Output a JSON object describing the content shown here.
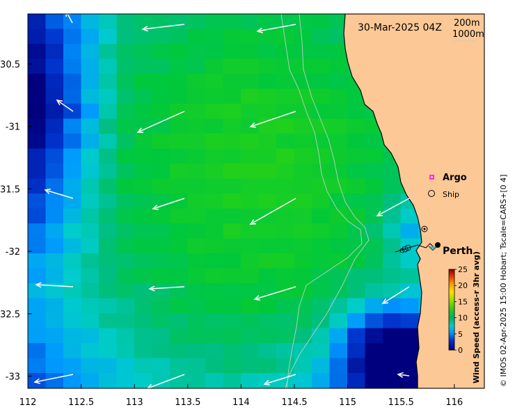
{
  "title": "30-Mar-2025 04Z",
  "depth_contours": [
    "200m",
    "1000m"
  ],
  "x_ticks": [
    "112",
    "112.5",
    "113",
    "113.5",
    "114",
    "114.5",
    "115",
    "115.5",
    "116"
  ],
  "y_ticks": [
    "-30.5",
    "-31",
    "-31.5",
    "-32",
    "-32.5",
    "-33"
  ],
  "legend": {
    "argo_label": "Argo",
    "ship_label": "Ship",
    "argo_color": "#ff00ff"
  },
  "city_label": "Perth",
  "colorbar": {
    "label": "Wind Speed (access-r 3hr avg)",
    "ticks": [
      "0",
      "5",
      "10",
      "15",
      "20",
      "25"
    ]
  },
  "credit": "© IMOS 02-Apr-2025 15:00 Hobart; Tscale=CARS+[0 4]",
  "colors": {
    "land": "#fcc896",
    "contour": "#bcd2c4"
  }
}
